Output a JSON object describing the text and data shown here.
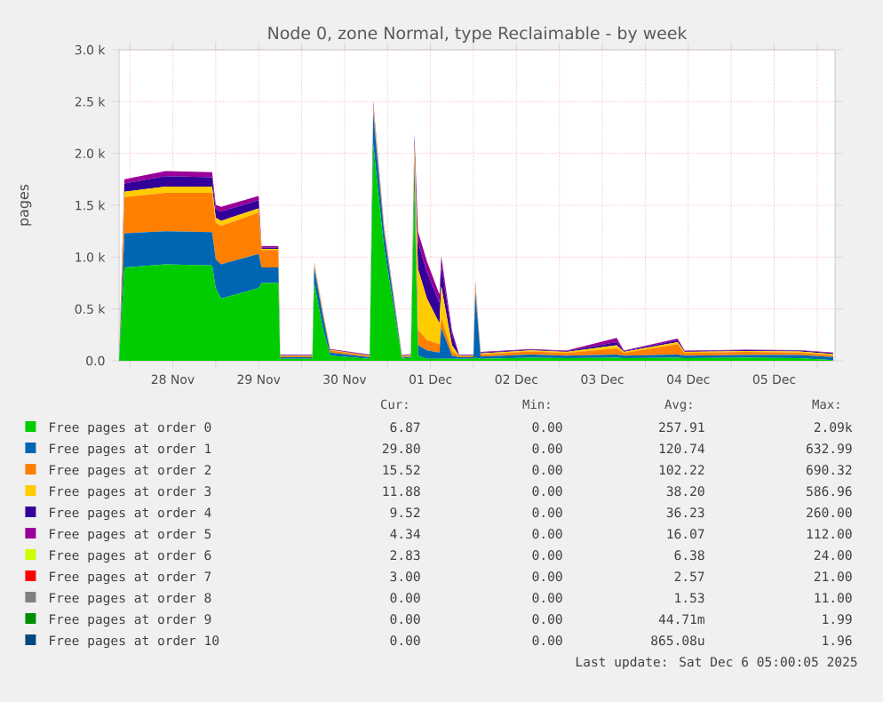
{
  "chart_data": {
    "type": "area",
    "title": "Node 0, zone Normal, type Reclaimable - by week",
    "ylabel": "pages",
    "stacked": true,
    "grid": true,
    "legend": "bottom",
    "xlim": [
      "2025-11-27T21:00",
      "2025-12-06T05:00"
    ],
    "ylim": [
      0,
      3000
    ],
    "xticks": [
      {
        "value": "2025-11-28T00:00",
        "label": null
      },
      {
        "value": "2025-11-28T12:00",
        "label": "28 Nov"
      },
      {
        "value": "2025-11-29T00:00",
        "label": null
      },
      {
        "value": "2025-11-29T12:00",
        "label": "29 Nov"
      },
      {
        "value": "2025-11-30T00:00",
        "label": null
      },
      {
        "value": "2025-11-30T12:00",
        "label": "30 Nov"
      },
      {
        "value": "2025-12-01T00:00",
        "label": null
      },
      {
        "value": "2025-12-01T12:00",
        "label": "01 Dec"
      },
      {
        "value": "2025-12-02T00:00",
        "label": null
      },
      {
        "value": "2025-12-02T12:00",
        "label": "02 Dec"
      },
      {
        "value": "2025-12-03T00:00",
        "label": null
      },
      {
        "value": "2025-12-03T12:00",
        "label": "03 Dec"
      },
      {
        "value": "2025-12-04T00:00",
        "label": null
      },
      {
        "value": "2025-12-04T12:00",
        "label": "04 Dec"
      },
      {
        "value": "2025-12-05T00:00",
        "label": null
      },
      {
        "value": "2025-12-05T12:00",
        "label": "05 Dec"
      },
      {
        "value": "2025-12-06T00:00",
        "label": null
      }
    ],
    "yticks": [
      {
        "value": 0,
        "label": "0.0"
      },
      {
        "value": 500,
        "label": "0.5 k"
      },
      {
        "value": 1000,
        "label": "1.0 k"
      },
      {
        "value": 1500,
        "label": "1.5 k"
      },
      {
        "value": 2000,
        "label": "2.0 k"
      },
      {
        "value": 2500,
        "label": "2.5 k"
      },
      {
        "value": 3000,
        "label": "3.0 k"
      }
    ],
    "x": [
      "2025-11-27T21:00",
      "2025-11-27T22:30",
      "2025-11-28T10:00",
      "2025-11-28T23:00",
      "2025-11-29T00:00",
      "2025-11-29T01:30",
      "2025-11-29T12:00",
      "2025-11-29T12:48",
      "2025-11-29T17:30",
      "2025-11-29T18:00",
      "2025-11-30T03:00",
      "2025-11-30T03:30",
      "2025-11-30T06:00",
      "2025-11-30T08:00",
      "2025-11-30T19:00",
      "2025-11-30T20:00",
      "2025-11-30T23:00",
      "2025-12-01T04:00",
      "2025-12-01T06:30",
      "2025-12-01T07:30",
      "2025-12-01T08:30",
      "2025-12-01T11:00",
      "2025-12-01T14:30",
      "2025-12-01T15:00",
      "2025-12-01T18:00",
      "2025-12-01T20:00",
      "2025-12-02T00:00",
      "2025-12-02T00:30",
      "2025-12-02T02:00",
      "2025-12-02T16:00",
      "2025-12-03T02:00",
      "2025-12-03T16:00",
      "2025-12-03T18:00",
      "2025-12-04T09:00",
      "2025-12-04T11:00",
      "2025-12-05T04:00",
      "2025-12-05T19:00",
      "2025-12-06T04:30"
    ],
    "series": [
      {
        "name": "Free pages at order  0",
        "color": "#00cc00",
        "values": [
          0,
          900,
          930,
          920,
          700,
          600,
          700,
          750,
          750,
          20,
          20,
          750,
          300,
          50,
          20,
          2090,
          1100,
          20,
          30,
          1700,
          50,
          20,
          20,
          20,
          20,
          20,
          20,
          30,
          20,
          30,
          25,
          30,
          25,
          30,
          25,
          30,
          25,
          7
        ]
      },
      {
        "name": "Free pages at order  1",
        "color": "#0066b3",
        "values": [
          0,
          330,
          320,
          320,
          280,
          330,
          330,
          150,
          150,
          15,
          15,
          150,
          120,
          30,
          15,
          300,
          150,
          10,
          10,
          200,
          100,
          80,
          60,
          300,
          30,
          15,
          15,
          630,
          20,
          30,
          25,
          30,
          25,
          30,
          25,
          25,
          30,
          30
        ]
      },
      {
        "name": "Free pages at order  2",
        "color": "#ff8000",
        "values": [
          0,
          350,
          370,
          380,
          350,
          370,
          400,
          170,
          170,
          10,
          10,
          30,
          30,
          20,
          10,
          50,
          30,
          10,
          10,
          100,
          150,
          100,
          80,
          100,
          40,
          10,
          10,
          50,
          20,
          30,
          25,
          60,
          25,
          100,
          25,
          30,
          25,
          16
        ]
      },
      {
        "name": "Free pages at order  3",
        "color": "#ffcc00",
        "values": [
          0,
          50,
          60,
          60,
          50,
          50,
          40,
          10,
          10,
          5,
          5,
          10,
          10,
          5,
          5,
          20,
          10,
          5,
          5,
          100,
          587,
          400,
          200,
          300,
          60,
          5,
          5,
          20,
          10,
          10,
          10,
          30,
          10,
          20,
          10,
          10,
          10,
          12
        ]
      },
      {
        "name": "Free pages at order  4",
        "color": "#330099",
        "values": [
          0,
          80,
          100,
          90,
          80,
          90,
          80,
          10,
          10,
          5,
          5,
          5,
          5,
          3,
          5,
          20,
          10,
          5,
          5,
          60,
          260,
          250,
          200,
          200,
          100,
          5,
          5,
          20,
          10,
          8,
          8,
          30,
          8,
          20,
          8,
          8,
          8,
          10
        ]
      },
      {
        "name": "Free pages at order  5",
        "color": "#990099",
        "values": [
          0,
          40,
          50,
          50,
          45,
          45,
          40,
          15,
          15,
          5,
          5,
          5,
          5,
          5,
          5,
          20,
          10,
          5,
          5,
          30,
          100,
          110,
          80,
          90,
          40,
          5,
          5,
          15,
          5,
          5,
          5,
          40,
          5,
          15,
          5,
          5,
          5,
          5
        ]
      },
      {
        "name": "Free pages at order  6",
        "color": "#ccff00",
        "values": [
          null,
          null,
          null,
          null,
          null,
          null,
          null,
          null,
          null,
          null,
          null,
          null,
          null,
          null,
          null,
          null,
          null,
          null,
          null,
          null,
          null,
          null,
          null,
          null,
          null,
          null,
          null,
          null,
          null,
          null,
          null,
          null,
          null,
          null,
          null,
          null,
          null,
          null
        ]
      },
      {
        "name": "Free pages at order  7",
        "color": "#ff0000",
        "values": [
          null,
          null,
          null,
          null,
          null,
          null,
          null,
          null,
          null,
          null,
          null,
          null,
          null,
          null,
          null,
          null,
          null,
          null,
          null,
          null,
          null,
          null,
          null,
          null,
          null,
          null,
          null,
          null,
          null,
          null,
          null,
          null,
          null,
          null,
          null,
          null,
          null,
          null
        ]
      },
      {
        "name": "Free pages at order  8",
        "color": "#808080",
        "values": [
          null,
          null,
          null,
          null,
          null,
          null,
          null,
          null,
          null,
          null,
          null,
          null,
          null,
          null,
          null,
          null,
          null,
          null,
          null,
          null,
          null,
          null,
          null,
          null,
          null,
          null,
          null,
          null,
          null,
          null,
          null,
          null,
          null,
          null,
          null,
          null,
          null,
          null
        ]
      },
      {
        "name": "Free pages at order  9",
        "color": "#008f00",
        "values": [
          null,
          null,
          null,
          null,
          null,
          null,
          null,
          null,
          null,
          null,
          null,
          null,
          null,
          null,
          null,
          null,
          null,
          null,
          null,
          null,
          null,
          null,
          null,
          null,
          null,
          null,
          null,
          null,
          null,
          null,
          null,
          null,
          null,
          null,
          null,
          null,
          null,
          null
        ]
      },
      {
        "name": "Free pages at order 10",
        "color": "#00487d",
        "values": [
          null,
          null,
          null,
          null,
          null,
          null,
          null,
          null,
          null,
          null,
          null,
          null,
          null,
          null,
          null,
          null,
          null,
          null,
          null,
          null,
          null,
          null,
          null,
          null,
          null,
          null,
          null,
          null,
          null,
          null,
          null,
          null,
          null,
          null,
          null,
          null,
          null,
          null
        ]
      }
    ],
    "annotations": [
      "Cur:",
      "Min:",
      "Avg:",
      "Max:",
      "6.87",
      "0.00",
      "257.91",
      "2.09k",
      "29.80",
      "0.00",
      "120.74",
      "632.99",
      "15.52",
      "0.00",
      "102.22",
      "690.32",
      "11.88",
      "0.00",
      "38.20",
      "586.96",
      "9.52",
      "0.00",
      "36.23",
      "260.00",
      "4.34",
      "0.00",
      "16.07",
      "112.00",
      "2.83",
      "0.00",
      "6.38",
      "24.00",
      "3.00",
      "0.00",
      "2.57",
      "21.00",
      "0.00",
      "0.00",
      "1.53",
      "11.00",
      "0.00",
      "0.00",
      "44.71m",
      "1.99",
      "0.00",
      "0.00",
      "865.08u",
      "1.96",
      "Last update: Sat Dec  6 05:00:05 2025"
    ]
  }
}
